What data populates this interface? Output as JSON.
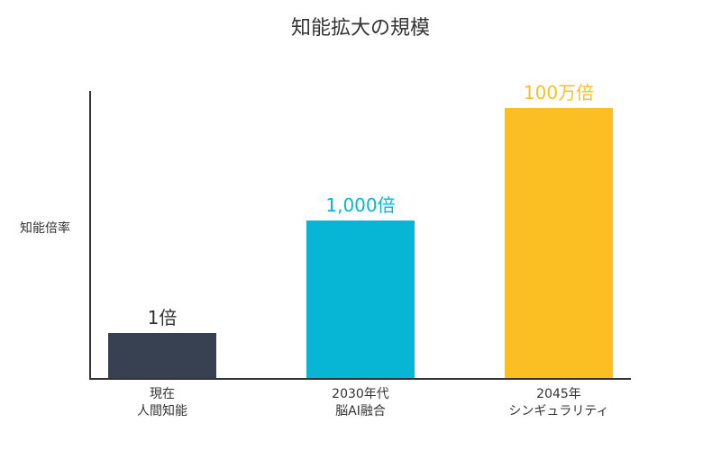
{
  "chart_data": {
    "type": "bar",
    "title": "知能拡大の規模",
    "ylabel": "知能倍率",
    "scale": "log",
    "categories": [
      [
        "現在",
        "人間知能"
      ],
      [
        "2030年代",
        "脳AI融合"
      ],
      [
        "2045年",
        "シンギュラリティ"
      ]
    ],
    "values": [
      1,
      1000,
      1000000
    ],
    "data_labels": [
      "1倍",
      "1,000倍",
      "100万倍"
    ],
    "colors": [
      "#374151",
      "#06b6d4",
      "#fbbf24"
    ],
    "grid": false
  }
}
